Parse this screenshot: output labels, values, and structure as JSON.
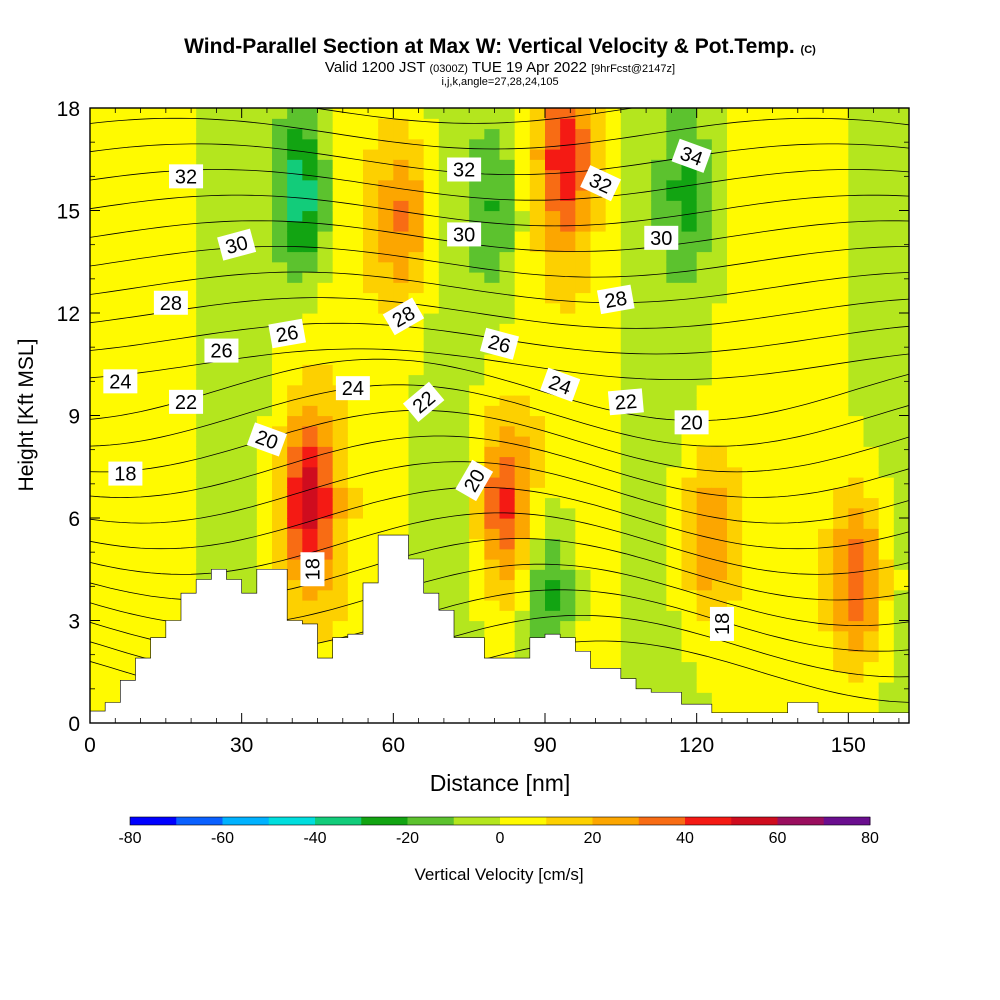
{
  "header": {
    "title": "Wind-Parallel Section at Max W: Vertical Velocity & Pot.Temp.",
    "title_units": "(C)",
    "subtitle_pre": "Valid 1200 JST",
    "subtitle_utc": "(0300Z)",
    "subtitle_date": "TUE 19 Apr 2022",
    "subtitle_fcst": "[9hrFcst@2147z]",
    "subtitle2": "i,j,k,angle=27,28,24,105"
  },
  "colors": {
    "velocity_scale": [
      "#0000ff",
      "#0a60ff",
      "#00b2ff",
      "#00dede",
      "#12cc7a",
      "#12a412",
      "#5cc22e",
      "#b4e61e",
      "#fffa00",
      "#fdd000",
      "#fca600",
      "#f86c14",
      "#f41a14",
      "#cf0c1e",
      "#9a0e5e",
      "#6a0e8e"
    ],
    "terrain": "#ffffff"
  },
  "chart_data": {
    "type": "heatmap",
    "xlabel": "Distance [nm]",
    "ylabel": "Height [Kft MSL]",
    "xlim": [
      0,
      162
    ],
    "ylim": [
      0,
      18
    ],
    "xticks": [
      0,
      30,
      60,
      90,
      120,
      150
    ],
    "yticks": [
      0,
      3,
      6,
      9,
      12,
      15,
      18
    ],
    "colorbar": {
      "label": "Vertical Velocity [cm/s]",
      "min": -80,
      "max": 80,
      "step": 10,
      "tick_labels": [
        -80,
        -60,
        -40,
        -20,
        0,
        20,
        40,
        60,
        80
      ]
    },
    "velocity_features": [
      {
        "x": 43,
        "y": 6.5,
        "w_cms": 50
      },
      {
        "x": 82,
        "y": 6.4,
        "w_cms": 40
      },
      {
        "x": 122,
        "y": 5.5,
        "w_cms": 30
      },
      {
        "x": 152,
        "y": 4.2,
        "w_cms": 40
      },
      {
        "x": 62,
        "y": 14.8,
        "w_cms": 30
      },
      {
        "x": 94,
        "y": 16.5,
        "w_cms": 40
      },
      {
        "x": 42,
        "y": 15.5,
        "w_cms": -40
      },
      {
        "x": 91,
        "y": 3.8,
        "w_cms": -30
      },
      {
        "x": 80,
        "y": 15.2,
        "w_cms": -20
      },
      {
        "x": 118,
        "y": 15.5,
        "w_cms": -20
      }
    ],
    "terrain_profile": {
      "x": [
        0,
        3,
        6,
        9,
        12,
        15,
        18,
        21,
        24,
        27,
        30,
        33,
        36,
        39,
        42,
        45,
        48,
        51,
        54,
        57,
        60,
        63,
        66,
        69,
        72,
        75,
        78,
        81,
        84,
        87,
        90,
        93,
        96,
        99,
        102,
        105,
        108,
        111,
        114,
        117,
        120,
        123,
        126,
        129,
        132,
        135,
        138,
        141,
        144,
        147,
        150,
        153,
        156,
        159,
        162
      ],
      "height_kft": [
        0.35,
        0.6,
        1.25,
        1.9,
        2.5,
        3.0,
        3.8,
        4.2,
        4.5,
        4.2,
        3.8,
        4.5,
        4.5,
        3.0,
        2.9,
        1.9,
        2.5,
        2.6,
        4.1,
        5.5,
        5.5,
        4.8,
        3.8,
        3.3,
        2.5,
        2.5,
        1.9,
        1.9,
        1.9,
        2.5,
        2.6,
        2.5,
        2.1,
        1.6,
        1.6,
        1.3,
        1.0,
        0.9,
        0.9,
        0.55,
        0.55,
        0.3,
        0.3,
        0.3,
        0.3,
        0.3,
        0.6,
        0.6,
        0.3,
        0.3,
        0.3,
        0.3,
        0.3,
        0.3,
        0.3
      ]
    },
    "theta_labels": [
      {
        "text": "32",
        "x": 19,
        "y": 16.0,
        "angle": 0
      },
      {
        "text": "32",
        "x": 74,
        "y": 16.2,
        "angle": 0
      },
      {
        "text": "32",
        "x": 101,
        "y": 15.8,
        "angle": 25
      },
      {
        "text": "34",
        "x": 119,
        "y": 16.6,
        "angle": 20
      },
      {
        "text": "30",
        "x": 29,
        "y": 14.0,
        "angle": -15
      },
      {
        "text": "30",
        "x": 74,
        "y": 14.3,
        "angle": 0
      },
      {
        "text": "30",
        "x": 113,
        "y": 14.2,
        "angle": 0
      },
      {
        "text": "28",
        "x": 16,
        "y": 12.3,
        "angle": 0
      },
      {
        "text": "28",
        "x": 62,
        "y": 11.9,
        "angle": -30
      },
      {
        "text": "28",
        "x": 104,
        "y": 12.4,
        "angle": -10
      },
      {
        "text": "26",
        "x": 26,
        "y": 10.9,
        "angle": 0
      },
      {
        "text": "26",
        "x": 39,
        "y": 11.4,
        "angle": -10
      },
      {
        "text": "26",
        "x": 81,
        "y": 11.1,
        "angle": 15
      },
      {
        "text": "24",
        "x": 6,
        "y": 10.0,
        "angle": 0
      },
      {
        "text": "24",
        "x": 52,
        "y": 9.8,
        "angle": 0
      },
      {
        "text": "24",
        "x": 93,
        "y": 9.9,
        "angle": 20
      },
      {
        "text": "22",
        "x": 19,
        "y": 9.4,
        "angle": 0
      },
      {
        "text": "22",
        "x": 66,
        "y": 9.4,
        "angle": -40
      },
      {
        "text": "22",
        "x": 106,
        "y": 9.4,
        "angle": -5
      },
      {
        "text": "20",
        "x": 35,
        "y": 8.3,
        "angle": 20
      },
      {
        "text": "20",
        "x": 76,
        "y": 7.1,
        "angle": -60
      },
      {
        "text": "20",
        "x": 119,
        "y": 8.8,
        "angle": 0
      },
      {
        "text": "18",
        "x": 7,
        "y": 7.3,
        "angle": 0
      },
      {
        "text": "18",
        "x": 44,
        "y": 4.5,
        "angle": -90
      },
      {
        "text": "18",
        "x": 125,
        "y": 2.9,
        "angle": -90
      }
    ]
  }
}
